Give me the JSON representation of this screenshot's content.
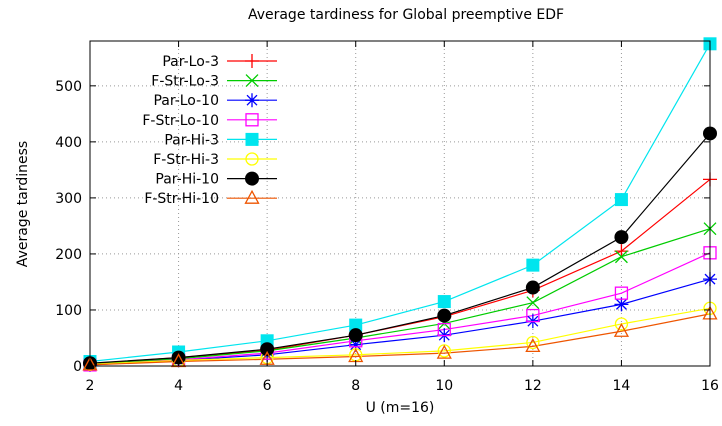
{
  "chart_data": {
    "type": "line",
    "title": "Average tardiness for Global preemptive EDF",
    "xlabel": "U (m=16)",
    "ylabel": "Average tardiness",
    "x": [
      2,
      4,
      6,
      8,
      10,
      12,
      14,
      16
    ],
    "xlim": [
      2,
      16
    ],
    "ylim": [
      0,
      580
    ],
    "xticks": [
      2,
      4,
      6,
      8,
      10,
      12,
      14,
      16
    ],
    "yticks": [
      0,
      100,
      200,
      300,
      400,
      500
    ],
    "grid": true,
    "legend_position": "top-left",
    "series": [
      {
        "name": "Par-Lo-3",
        "color": "#ff0000",
        "marker": "plus",
        "values": [
          4,
          15,
          28,
          55,
          88,
          135,
          205,
          333
        ]
      },
      {
        "name": "F-Str-Lo-3",
        "color": "#00cc00",
        "marker": "cross",
        "values": [
          3,
          13,
          27,
          50,
          76,
          113,
          195,
          245
        ]
      },
      {
        "name": "Par-Lo-10",
        "color": "#0000ff",
        "marker": "star",
        "values": [
          2,
          10,
          20,
          38,
          55,
          80,
          110,
          155
        ]
      },
      {
        "name": "F-Str-Lo-10",
        "color": "#ff00ff",
        "marker": "open-square",
        "values": [
          2,
          11,
          23,
          45,
          65,
          90,
          130,
          202
        ]
      },
      {
        "name": "Par-Hi-3",
        "color": "#00e5ee",
        "marker": "filled-square",
        "values": [
          8,
          25,
          45,
          73,
          115,
          180,
          297,
          575
        ]
      },
      {
        "name": "F-Str-Hi-3",
        "color": "#ffff00",
        "marker": "open-circle",
        "values": [
          3,
          10,
          15,
          20,
          27,
          42,
          75,
          103
        ]
      },
      {
        "name": "Par-Hi-10",
        "color": "#000000",
        "marker": "filled-circle",
        "values": [
          5,
          15,
          30,
          55,
          90,
          140,
          230,
          415
        ]
      },
      {
        "name": "F-Str-Hi-10",
        "color": "#ee5500",
        "marker": "open-triangle",
        "values": [
          2,
          8,
          12,
          17,
          23,
          35,
          62,
          93
        ]
      }
    ]
  }
}
